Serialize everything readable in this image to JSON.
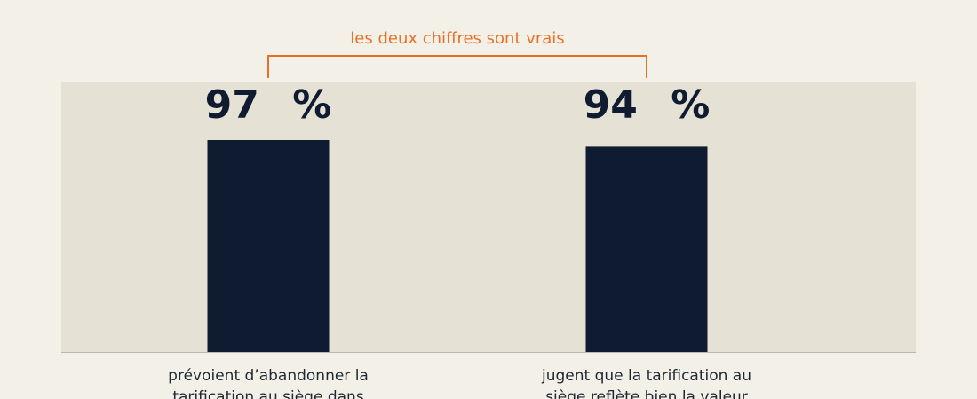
{
  "chart_data": {
    "type": "bar",
    "annotation": "les deux chiffres sont vrais",
    "categories": [
      "prévoient d’abandonner la tarification au siège dans",
      "jugent que la tarification au siège reflète bien la valeur"
    ],
    "values": [
      97,
      94
    ],
    "value_labels": [
      "97 %",
      "94 %"
    ],
    "color": "#0f1b30"
  }
}
